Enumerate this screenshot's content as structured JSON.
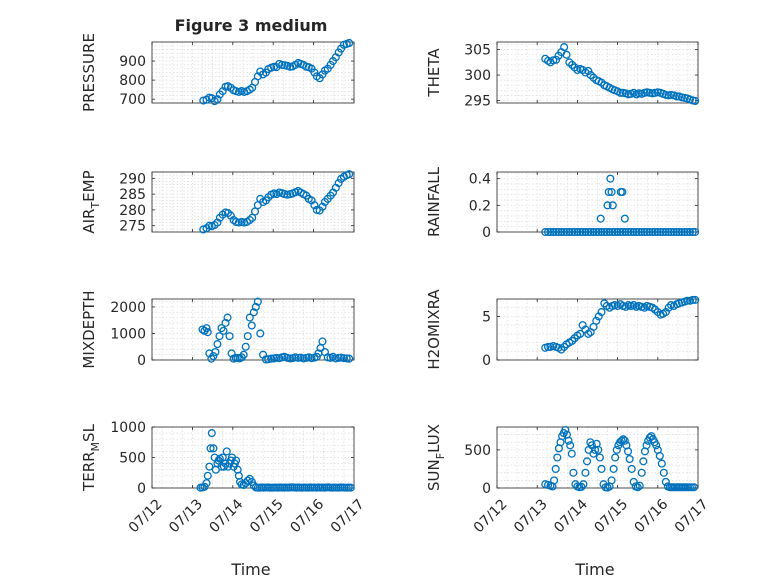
{
  "figure_title": "Figure 3 medium",
  "colors": {
    "marker": "#0072bd",
    "axis": "#262626",
    "grid": "#d9d9d9"
  },
  "chart_data": [
    {
      "type": "scatter",
      "ylabel": "PRESSURE",
      "xlim": [
        "07/12",
        "07/17"
      ],
      "ylim": [
        680,
        1000
      ],
      "yticks": [
        700,
        800,
        900
      ],
      "show_xticklabels": false,
      "x": [
        13.27,
        13.35,
        13.42,
        13.48,
        13.55,
        13.62,
        13.68,
        13.75,
        13.82,
        13.88,
        13.95,
        14.02,
        14.08,
        14.15,
        14.22,
        14.28,
        14.35,
        14.42,
        14.48,
        14.55,
        14.62,
        14.68,
        14.75,
        14.82,
        14.88,
        14.95,
        15.02,
        15.08,
        15.15,
        15.22,
        15.28,
        15.35,
        15.42,
        15.48,
        15.55,
        15.62,
        15.68,
        15.75,
        15.82,
        15.88,
        15.95,
        16.02,
        16.08,
        16.15,
        16.22,
        16.28,
        16.35,
        16.42,
        16.48,
        16.55,
        16.62,
        16.68,
        16.75,
        16.82,
        16.88
      ],
      "y": [
        693,
        697,
        708,
        705,
        690,
        700,
        725,
        742,
        765,
        768,
        760,
        747,
        742,
        738,
        743,
        738,
        742,
        750,
        760,
        790,
        820,
        845,
        830,
        840,
        858,
        865,
        870,
        868,
        885,
        880,
        878,
        875,
        870,
        872,
        880,
        890,
        885,
        880,
        870,
        868,
        860,
        840,
        820,
        810,
        830,
        850,
        860,
        880,
        900,
        920,
        945,
        965,
        985,
        990,
        995
      ]
    },
    {
      "type": "scatter",
      "ylabel": "THETA",
      "xlim": [
        "07/12",
        "07/17"
      ],
      "ylim": [
        294.5,
        306.5
      ],
      "yticks": [
        295,
        300,
        305
      ],
      "show_xticklabels": false,
      "x": [
        13.2,
        13.27,
        13.33,
        13.4,
        13.47,
        13.53,
        13.6,
        13.67,
        13.73,
        13.8,
        13.87,
        13.93,
        14.0,
        14.07,
        14.13,
        14.2,
        14.27,
        14.33,
        14.4,
        14.47,
        14.53,
        14.6,
        14.67,
        14.73,
        14.8,
        14.87,
        14.93,
        15.0,
        15.07,
        15.13,
        15.2,
        15.27,
        15.33,
        15.4,
        15.47,
        15.53,
        15.6,
        15.67,
        15.73,
        15.8,
        15.87,
        15.93,
        16.0,
        16.07,
        16.13,
        16.2,
        16.27,
        16.33,
        16.4,
        16.47,
        16.53,
        16.6,
        16.67,
        16.73,
        16.8,
        16.87,
        16.93
      ],
      "y": [
        303.2,
        302.8,
        302.5,
        302.9,
        303.0,
        303.8,
        304.5,
        305.5,
        304.0,
        302.5,
        302.0,
        301.5,
        301.0,
        301.2,
        301.0,
        300.5,
        300.8,
        300.0,
        299.5,
        299.0,
        298.8,
        298.5,
        298.0,
        297.8,
        297.5,
        297.2,
        297.0,
        296.8,
        296.5,
        296.5,
        296.4,
        296.2,
        296.3,
        296.5,
        296.2,
        296.4,
        296.3,
        296.5,
        296.6,
        296.5,
        296.4,
        296.5,
        296.6,
        296.5,
        296.3,
        296.1,
        296.0,
        296.1,
        296.0,
        295.8,
        295.8,
        295.6,
        295.5,
        295.4,
        295.2,
        295.0,
        294.9
      ]
    },
    {
      "type": "scatter",
      "ylabel": "AIR_TEMP",
      "xlim": [
        "07/12",
        "07/17"
      ],
      "ylim": [
        273,
        292
      ],
      "yticks": [
        275,
        280,
        285,
        290
      ],
      "show_xticklabels": false,
      "x": [
        13.27,
        13.35,
        13.42,
        13.48,
        13.55,
        13.62,
        13.68,
        13.75,
        13.82,
        13.88,
        13.95,
        14.02,
        14.08,
        14.15,
        14.22,
        14.28,
        14.35,
        14.42,
        14.48,
        14.55,
        14.62,
        14.68,
        14.75,
        14.82,
        14.88,
        14.95,
        15.02,
        15.08,
        15.15,
        15.22,
        15.28,
        15.35,
        15.42,
        15.48,
        15.55,
        15.62,
        15.68,
        15.75,
        15.82,
        15.88,
        15.95,
        16.02,
        16.08,
        16.15,
        16.22,
        16.28,
        16.35,
        16.42,
        16.48,
        16.55,
        16.62,
        16.68,
        16.75,
        16.82,
        16.88
      ],
      "y": [
        273.8,
        274.2,
        275.0,
        274.8,
        275.2,
        276.0,
        277.5,
        278.5,
        279.2,
        279.0,
        278.2,
        276.8,
        276.2,
        276.0,
        276.2,
        276.0,
        276.2,
        276.8,
        277.5,
        279.5,
        281.5,
        283.5,
        282.5,
        283.0,
        284.0,
        284.8,
        285.2,
        285.0,
        285.5,
        285.3,
        285.0,
        284.8,
        285.0,
        285.2,
        285.6,
        286.0,
        285.5,
        285.0,
        284.5,
        283.5,
        283.0,
        281.5,
        280.0,
        279.8,
        281.0,
        282.5,
        283.5,
        284.5,
        285.5,
        287.0,
        288.5,
        289.8,
        290.5,
        291.0,
        291.3
      ]
    },
    {
      "type": "scatter",
      "ylabel": "RAINFALL",
      "xlim": [
        "07/12",
        "07/17"
      ],
      "ylim": [
        0,
        0.45
      ],
      "yticks": [
        0,
        0.2,
        0.4
      ],
      "show_xticklabels": false,
      "x": [
        13.2,
        13.27,
        13.33,
        13.4,
        13.47,
        13.53,
        13.6,
        13.67,
        13.73,
        13.8,
        13.87,
        13.93,
        14.0,
        14.07,
        14.13,
        14.2,
        14.27,
        14.33,
        14.4,
        14.47,
        14.53,
        14.6,
        14.67,
        14.73,
        14.8,
        14.87,
        14.93,
        15.0,
        15.07,
        15.13,
        15.2,
        15.27,
        15.33,
        15.4,
        15.47,
        15.53,
        15.6,
        15.67,
        15.73,
        15.8,
        15.87,
        15.93,
        16.0,
        16.07,
        16.13,
        16.2,
        16.27,
        16.33,
        16.4,
        16.47,
        16.53,
        16.6,
        16.67,
        16.73,
        16.8,
        16.87,
        16.93,
        14.58,
        14.75,
        14.78,
        14.82,
        14.85,
        14.88,
        15.08,
        15.12,
        15.18
      ],
      "y": [
        0,
        0,
        0,
        0,
        0,
        0,
        0,
        0,
        0,
        0,
        0,
        0,
        0,
        0,
        0,
        0,
        0,
        0,
        0,
        0,
        0,
        0,
        0,
        0,
        0,
        0,
        0,
        0,
        0,
        0,
        0,
        0,
        0,
        0,
        0,
        0,
        0,
        0,
        0,
        0,
        0,
        0,
        0,
        0,
        0,
        0,
        0,
        0,
        0,
        0,
        0,
        0,
        0,
        0,
        0,
        0,
        0,
        0.1,
        0.2,
        0.3,
        0.4,
        0.3,
        0.2,
        0.3,
        0.3,
        0.1
      ]
    },
    {
      "type": "scatter",
      "ylabel": "MIXDEPTH",
      "xlim": [
        "07/12",
        "07/17"
      ],
      "ylim": [
        0,
        2300
      ],
      "yticks": [
        0,
        1000,
        2000
      ],
      "show_xticklabels": false,
      "x": [
        13.25,
        13.3,
        13.35,
        13.38,
        13.42,
        13.47,
        13.52,
        13.57,
        13.62,
        13.67,
        13.72,
        13.77,
        13.82,
        13.87,
        13.92,
        13.97,
        14.02,
        14.07,
        14.12,
        14.17,
        14.22,
        14.27,
        14.32,
        14.37,
        14.42,
        14.47,
        14.52,
        14.57,
        14.62,
        14.68,
        14.75,
        14.82,
        14.88,
        14.95,
        15.02,
        15.08,
        15.15,
        15.22,
        15.28,
        15.35,
        15.42,
        15.48,
        15.55,
        15.62,
        15.68,
        15.75,
        15.82,
        15.88,
        15.95,
        16.02,
        16.08,
        16.12,
        16.17,
        16.22,
        16.28,
        16.35,
        16.42,
        16.48,
        16.55,
        16.62,
        16.68,
        16.75,
        16.82,
        16.88
      ],
      "y": [
        1150,
        1100,
        1200,
        1050,
        250,
        50,
        150,
        300,
        600,
        900,
        1200,
        1100,
        1400,
        1600,
        900,
        250,
        50,
        80,
        80,
        60,
        100,
        200,
        500,
        900,
        1600,
        1300,
        1800,
        2000,
        2200,
        1000,
        200,
        20,
        30,
        50,
        60,
        80,
        70,
        100,
        120,
        80,
        60,
        70,
        100,
        80,
        90,
        60,
        80,
        100,
        70,
        90,
        120,
        250,
        450,
        700,
        300,
        100,
        80,
        120,
        60,
        80,
        90,
        70,
        60,
        50
      ]
    },
    {
      "type": "scatter",
      "ylabel": "H2OMIXRA",
      "xlim": [
        "07/12",
        "07/17"
      ],
      "ylim": [
        0,
        7
      ],
      "yticks": [
        0,
        5
      ],
      "show_xticklabels": false,
      "x": [
        13.2,
        13.27,
        13.33,
        13.4,
        13.47,
        13.53,
        13.6,
        13.67,
        13.73,
        13.8,
        13.87,
        13.93,
        14.0,
        14.07,
        14.13,
        14.2,
        14.27,
        14.33,
        14.4,
        14.47,
        14.53,
        14.6,
        14.67,
        14.73,
        14.8,
        14.87,
        14.93,
        15.0,
        15.07,
        15.13,
        15.2,
        15.27,
        15.33,
        15.4,
        15.47,
        15.53,
        15.6,
        15.67,
        15.73,
        15.8,
        15.87,
        15.93,
        16.0,
        16.07,
        16.13,
        16.2,
        16.27,
        16.33,
        16.4,
        16.47,
        16.53,
        16.6,
        16.67,
        16.73,
        16.8,
        16.87,
        16.93
      ],
      "y": [
        1.4,
        1.5,
        1.5,
        1.6,
        1.5,
        1.4,
        1.2,
        1.5,
        1.8,
        2.0,
        2.2,
        2.5,
        2.8,
        3.0,
        4.0,
        3.5,
        3.0,
        3.2,
        3.8,
        4.5,
        5.0,
        5.5,
        6.5,
        6.2,
        6.0,
        6.2,
        6.3,
        6.2,
        6.4,
        6.2,
        6.1,
        6.3,
        6.2,
        6.3,
        6.1,
        6.2,
        6.1,
        6.0,
        6.2,
        6.1,
        6.0,
        5.8,
        5.5,
        5.2,
        5.3,
        5.5,
        6.0,
        6.3,
        6.2,
        6.4,
        6.5,
        6.6,
        6.7,
        6.8,
        6.8,
        6.9,
        6.9
      ]
    },
    {
      "type": "scatter",
      "ylabel": "TERR_MSL",
      "xlim": [
        "07/12",
        "07/17"
      ],
      "ylim": [
        0,
        1000
      ],
      "yticks": [
        0,
        500,
        1000
      ],
      "show_xticklabels": true,
      "x": [
        13.2,
        13.25,
        13.3,
        13.35,
        13.38,
        13.42,
        13.45,
        13.48,
        13.52,
        13.55,
        13.58,
        13.62,
        13.65,
        13.68,
        13.72,
        13.75,
        13.78,
        13.82,
        13.85,
        13.88,
        13.92,
        13.95,
        13.98,
        14.02,
        14.05,
        14.08,
        14.12,
        14.15,
        14.18,
        14.22,
        14.27,
        14.32,
        14.37,
        14.42,
        14.47,
        14.52,
        14.57,
        14.62,
        14.67,
        14.72,
        14.77,
        14.82,
        14.87,
        14.92,
        14.97,
        15.02,
        15.07,
        15.12,
        15.17,
        15.22,
        15.27,
        15.32,
        15.37,
        15.42,
        15.47,
        15.52,
        15.57,
        15.62,
        15.67,
        15.72,
        15.77,
        15.82,
        15.87,
        15.92,
        15.97,
        16.02,
        16.07,
        16.12,
        16.17,
        16.22,
        16.27,
        16.32,
        16.37,
        16.42,
        16.47,
        16.52,
        16.57,
        16.62,
        16.67,
        16.72,
        16.77,
        16.82,
        16.87,
        16.92
      ],
      "y": [
        5,
        10,
        20,
        80,
        200,
        350,
        650,
        900,
        650,
        500,
        300,
        400,
        450,
        480,
        350,
        500,
        350,
        400,
        600,
        350,
        400,
        450,
        500,
        350,
        400,
        450,
        300,
        200,
        100,
        60,
        50,
        80,
        120,
        150,
        100,
        40,
        10,
        5,
        5,
        10,
        5,
        8,
        10,
        5,
        5,
        6,
        8,
        5,
        10,
        6,
        5,
        8,
        6,
        10,
        12,
        8,
        5,
        10,
        6,
        5,
        8,
        6,
        5,
        10,
        6,
        8,
        5,
        10,
        6,
        8,
        5,
        10,
        12,
        6,
        5,
        8,
        6,
        5,
        10,
        8,
        6,
        5,
        8,
        5
      ]
    },
    {
      "type": "scatter",
      "ylabel": "SUN_FLUX",
      "xlim": [
        "07/12",
        "07/17"
      ],
      "ylim": [
        0,
        800
      ],
      "yticks": [
        0,
        500
      ],
      "show_xticklabels": true,
      "x": [
        13.2,
        13.27,
        13.33,
        13.38,
        13.42,
        13.46,
        13.5,
        13.54,
        13.58,
        13.62,
        13.66,
        13.7,
        13.74,
        13.78,
        13.82,
        13.86,
        13.9,
        13.95,
        14.0,
        14.05,
        14.1,
        14.15,
        14.2,
        14.24,
        14.28,
        14.32,
        14.36,
        14.4,
        14.44,
        14.48,
        14.52,
        14.56,
        14.6,
        14.65,
        14.7,
        14.75,
        14.8,
        14.85,
        14.9,
        14.94,
        14.98,
        15.02,
        15.06,
        15.1,
        15.14,
        15.18,
        15.22,
        15.26,
        15.3,
        15.35,
        15.4,
        15.45,
        15.5,
        15.55,
        15.6,
        15.64,
        15.68,
        15.72,
        15.76,
        15.8,
        15.84,
        15.88,
        15.92,
        15.96,
        16.0,
        16.05,
        16.1,
        16.15,
        16.2,
        16.25,
        16.3,
        16.34,
        16.38,
        16.42,
        16.46,
        16.5,
        16.54,
        16.58,
        16.62,
        16.66,
        16.7,
        16.75,
        16.8,
        16.85,
        16.9
      ],
      "y": [
        50,
        40,
        30,
        20,
        100,
        250,
        400,
        520,
        600,
        680,
        720,
        760,
        700,
        620,
        560,
        450,
        200,
        50,
        20,
        10,
        15,
        50,
        200,
        350,
        500,
        600,
        560,
        450,
        500,
        580,
        500,
        400,
        250,
        50,
        10,
        5,
        20,
        100,
        250,
        400,
        500,
        560,
        600,
        620,
        640,
        620,
        560,
        480,
        380,
        250,
        80,
        20,
        10,
        30,
        200,
        350,
        480,
        560,
        620,
        660,
        680,
        640,
        600,
        560,
        500,
        420,
        320,
        200,
        80,
        20,
        10,
        10,
        10,
        10,
        10,
        10,
        10,
        10,
        10,
        10,
        10,
        10,
        10,
        10,
        10
      ]
    }
  ],
  "x_axis": {
    "tick_labels": [
      "07/12",
      "07/13",
      "07/14",
      "07/15",
      "07/16",
      "07/17"
    ],
    "label": "Time"
  }
}
